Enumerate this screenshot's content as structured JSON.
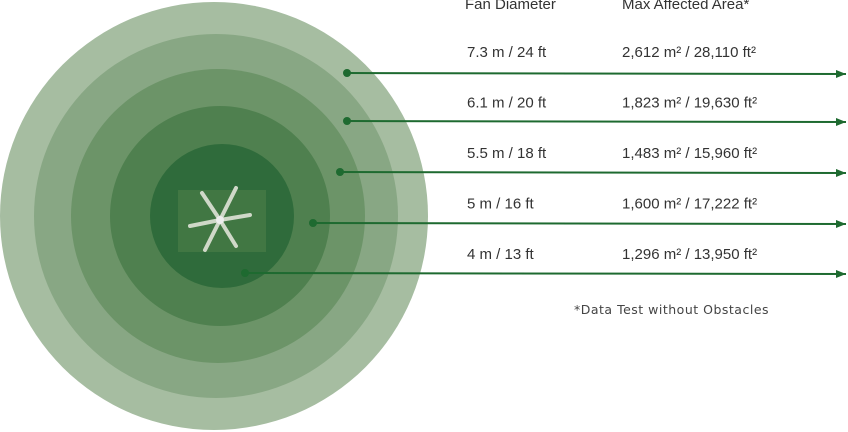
{
  "header": {
    "diameter": "Fan Diameter",
    "area": "Max Affected Area*"
  },
  "rows": [
    {
      "diameter": "7.3 m / 24 ft",
      "area": "2,612 m² / 28,110 ft²"
    },
    {
      "diameter": "6.1 m / 20 ft",
      "area": "1,823 m² / 19,630 ft²"
    },
    {
      "diameter": "5.5 m / 18 ft",
      "area": "1,483 m² / 15,960 ft²"
    },
    {
      "diameter": "5 m / 16 ft",
      "area": "1,600 m² / 17,222 ft²"
    },
    {
      "diameter": "4 m / 13 ft",
      "area": "1,296 m² / 13,950 ft²"
    }
  ],
  "footnote": "*Data Test without Obstacles"
}
